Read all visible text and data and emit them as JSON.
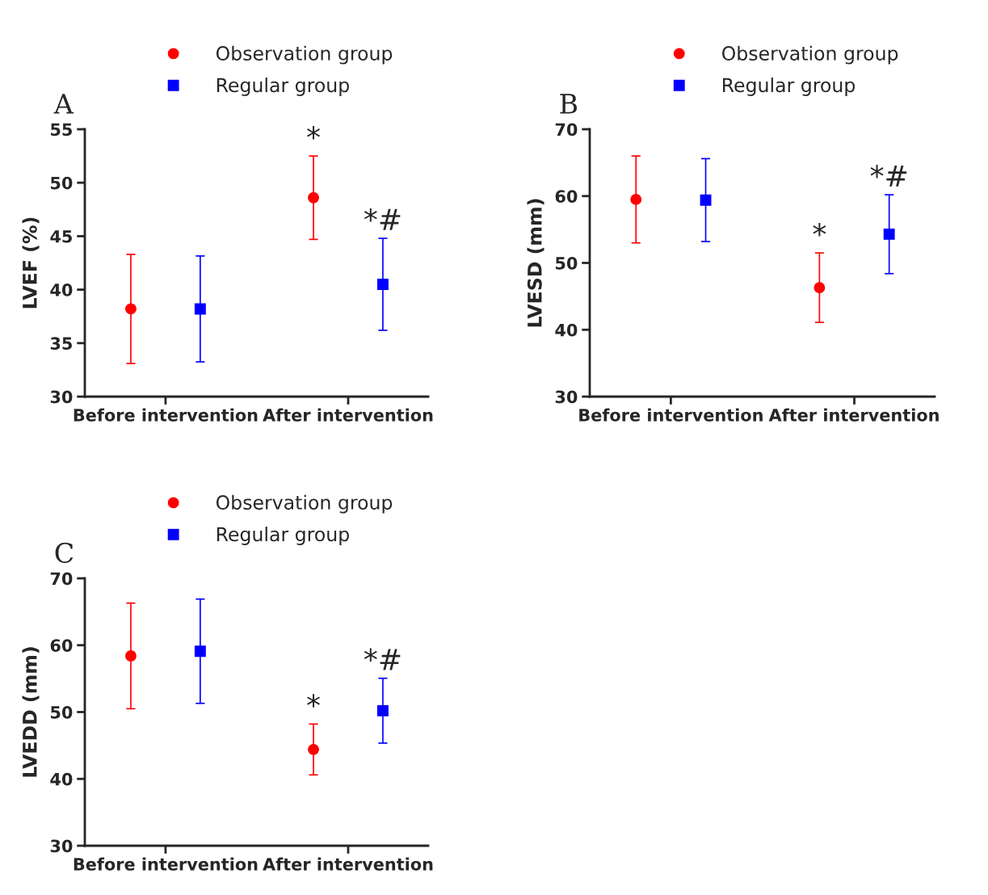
{
  "chart_data": [
    {
      "type": "scatter",
      "title": "A",
      "ylabel": "LVEF (%)",
      "categories": [
        "Before intervention",
        "After intervention"
      ],
      "ylim": [
        30,
        55
      ],
      "yticks": [
        30,
        35,
        40,
        45,
        50,
        55
      ],
      "legend": "top",
      "grid": false,
      "series": [
        {
          "name": "Observation group",
          "color": "#ff0000",
          "marker": "circle",
          "values": [
            38.2,
            48.6
          ],
          "errors": [
            5.1,
            3.9
          ]
        },
        {
          "name": "Regular group",
          "color": "#0000ff",
          "marker": "square",
          "values": [
            38.2,
            40.5
          ],
          "errors": [
            4.95,
            4.3
          ]
        }
      ],
      "annotations": [
        "*",
        "*#"
      ]
    },
    {
      "type": "scatter",
      "title": "B",
      "ylabel": "LVESD (mm)",
      "categories": [
        "Before intervention",
        "After intervention"
      ],
      "ylim": [
        30,
        70
      ],
      "yticks": [
        30,
        40,
        50,
        60,
        70
      ],
      "legend": "top",
      "grid": false,
      "series": [
        {
          "name": "Observation group",
          "color": "#ff0000",
          "marker": "circle",
          "values": [
            59.5,
            46.3
          ],
          "errors": [
            6.5,
            5.2
          ]
        },
        {
          "name": "Regular group",
          "color": "#0000ff",
          "marker": "square",
          "values": [
            59.4,
            54.3
          ],
          "errors": [
            6.2,
            5.9
          ]
        }
      ],
      "annotations": [
        "*",
        "*#"
      ]
    },
    {
      "type": "scatter",
      "title": "C",
      "ylabel": "LVEDD (mm)",
      "categories": [
        "Before intervention",
        "After intervention"
      ],
      "ylim": [
        30,
        70
      ],
      "yticks": [
        30,
        40,
        50,
        60,
        70
      ],
      "legend": "top",
      "grid": false,
      "series": [
        {
          "name": "Observation group",
          "color": "#ff0000",
          "marker": "circle",
          "values": [
            58.4,
            44.4
          ],
          "errors": [
            7.9,
            3.8
          ]
        },
        {
          "name": "Regular group",
          "color": "#0000ff",
          "marker": "square",
          "values": [
            59.1,
            50.2
          ],
          "errors": [
            7.8,
            4.85
          ]
        }
      ],
      "annotations": [
        "*",
        "*#"
      ]
    }
  ]
}
